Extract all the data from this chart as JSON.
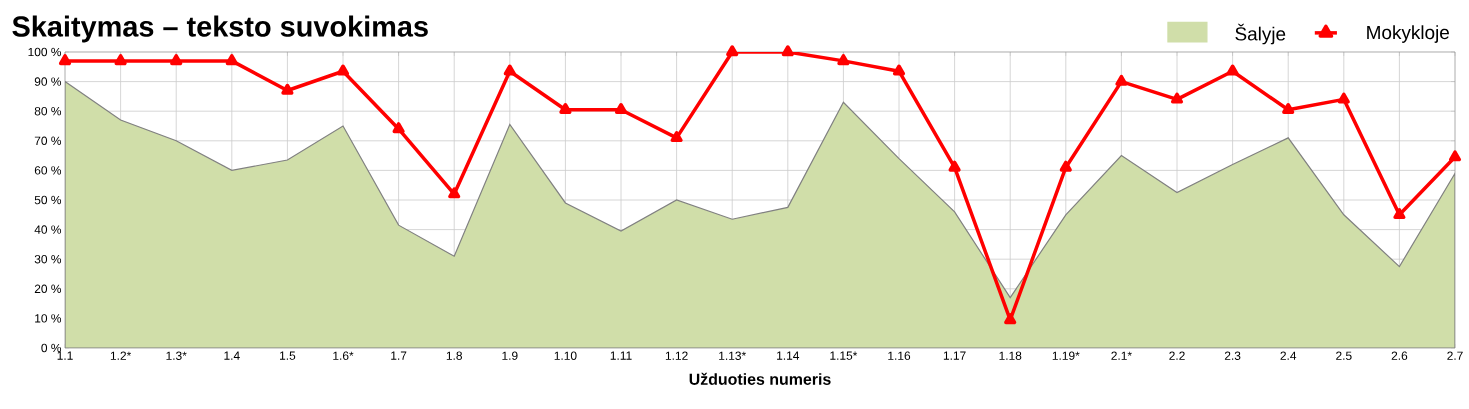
{
  "chart_data": {
    "type": "line",
    "title": "Skaitymas – teksto suvokimas",
    "xlabel": "Užduoties numeris",
    "categories": [
      "1.1",
      "1.2*",
      "1.3*",
      "1.4",
      "1.5",
      "1.6*",
      "1.7",
      "1.8",
      "1.9",
      "1.10",
      "1.11",
      "1.12",
      "1.13*",
      "1.14",
      "1.15*",
      "1.16",
      "1.17",
      "1.18",
      "1.19*",
      "2.1*",
      "2.2",
      "2.3",
      "2.4",
      "2.5",
      "2.6",
      "2.7"
    ],
    "series": [
      {
        "name": "Šalyje",
        "type": "area",
        "color": "#d0dea9",
        "values": [
          90,
          77,
          70,
          60,
          63.5,
          75,
          41.5,
          31,
          75.5,
          49,
          39.5,
          50,
          43.5,
          47.5,
          83,
          64,
          46,
          17,
          45,
          65,
          52.5,
          62,
          71,
          45,
          27.5,
          59
        ]
      },
      {
        "name": "Mokykloje",
        "color": "#ff0000",
        "marker": "triangle",
        "values": [
          97,
          97,
          97,
          97,
          87,
          93.5,
          74,
          52,
          93.5,
          80.5,
          80.5,
          71,
          100,
          100,
          97,
          93.5,
          61,
          9.5,
          61,
          90,
          84,
          93.5,
          80.5,
          84,
          45,
          64.5
        ]
      }
    ],
    "ylim": [
      0,
      100
    ],
    "yticks": [
      {
        "value": 0,
        "label": "0 %"
      },
      {
        "value": 10,
        "label": "10 %"
      },
      {
        "value": 20,
        "label": "20 %"
      },
      {
        "value": 30,
        "label": "30 %"
      },
      {
        "value": 40,
        "label": "40 %"
      },
      {
        "value": 50,
        "label": "50 %"
      },
      {
        "value": 60,
        "label": "60 %"
      },
      {
        "value": 70,
        "label": "70 %"
      },
      {
        "value": 80,
        "label": "80 %"
      },
      {
        "value": 90,
        "label": "90 %"
      },
      {
        "value": 100,
        "label": "100 %"
      }
    ],
    "grid": true,
    "legend": "top right"
  }
}
